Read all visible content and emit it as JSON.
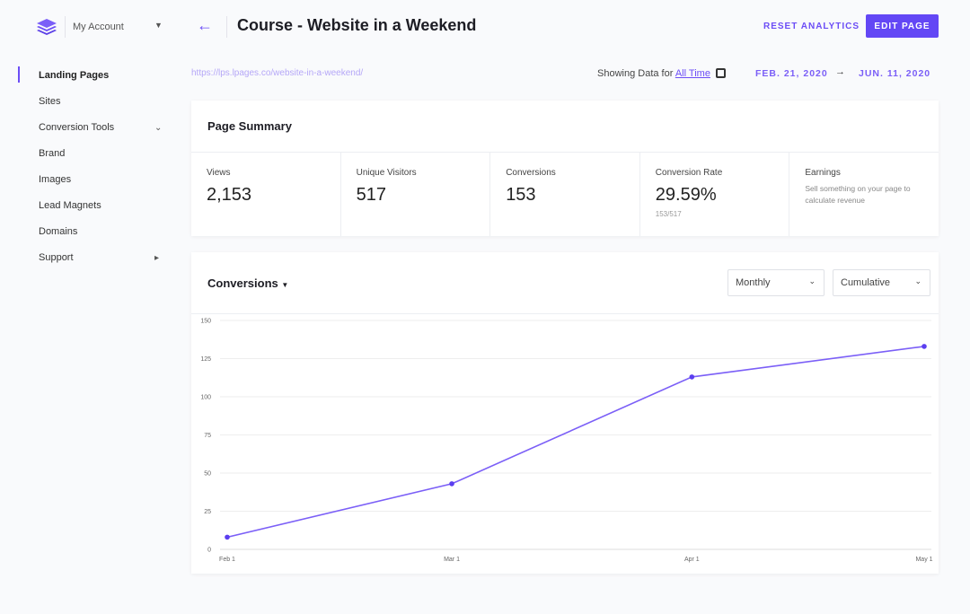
{
  "header": {
    "account": "My Account",
    "title": "Course - Website in a Weekend",
    "reset_label": "RESET ANALYTICS",
    "edit_label": "EDIT PAGE"
  },
  "sidebar": {
    "items": [
      {
        "label": "Landing Pages",
        "active": true
      },
      {
        "label": "Sites"
      },
      {
        "label": "Conversion Tools",
        "chevron": "down"
      },
      {
        "label": "Brand"
      },
      {
        "label": "Images"
      },
      {
        "label": "Lead Magnets"
      },
      {
        "label": "Domains"
      },
      {
        "label": "Support",
        "chevron": "right"
      }
    ]
  },
  "subheader": {
    "url": "https://lps.lpages.co/website-in-a-weekend/",
    "showing": "Showing Data for",
    "range_link": "All Time",
    "start": "FEB. 21, 2020",
    "end": "JUN. 11, 2020"
  },
  "summary": {
    "title": "Page Summary",
    "stats": [
      {
        "label": "Views",
        "value": "2,153"
      },
      {
        "label": "Unique Visitors",
        "value": "517"
      },
      {
        "label": "Conversions",
        "value": "153"
      },
      {
        "label": "Conversion Rate",
        "value": "29.59%",
        "sub": "153/517"
      },
      {
        "label": "Earnings",
        "desc": "Sell something on your page to calculate revenue"
      }
    ]
  },
  "conversions": {
    "title": "Conversions",
    "period": "Monthly",
    "mode": "Cumulative"
  },
  "colors": {
    "accent": "#6c4df6"
  },
  "chart_data": {
    "type": "line",
    "x": [
      "Feb 1",
      "Mar 1",
      "Apr 1",
      "May 1"
    ],
    "x_days": [
      0,
      29,
      60,
      90
    ],
    "values": [
      8,
      43,
      113,
      133
    ],
    "yticks": [
      0,
      25,
      50,
      75,
      100,
      125,
      150
    ],
    "ylim": [
      0,
      150
    ],
    "grid": true,
    "series": [
      {
        "name": "Conversions",
        "values": [
          8,
          43,
          113,
          133
        ]
      }
    ]
  }
}
